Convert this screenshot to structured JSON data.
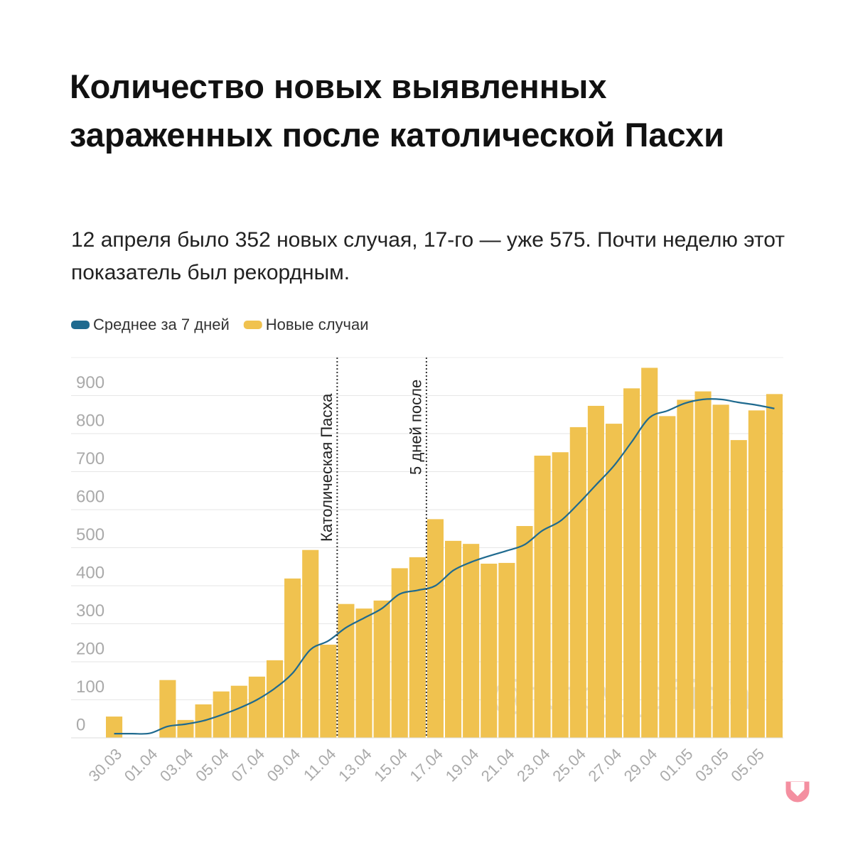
{
  "chart_data": {
    "type": "bar_line",
    "title": "Количество новых выявленных зараженных после католической Пасхи",
    "subtitle": "12 апреля было 352 новых случая, 17-го — уже 575. Почти неделю этот показатель был рекордным.",
    "categories": [
      "30.03",
      null,
      "01.04",
      null,
      "03.04",
      null,
      "05.04",
      null,
      "07.04",
      null,
      "09.04",
      null,
      "11.04",
      null,
      "13.04",
      null,
      "15.04",
      null,
      "17.04",
      null,
      "19.04",
      null,
      "21.04",
      null,
      "23.04",
      null,
      "25.04",
      null,
      "27.04",
      null,
      "29.04",
      null,
      "01.05",
      null,
      "03.05",
      null,
      "05.05",
      null
    ],
    "series": [
      {
        "name": "Среднее за 7 дней",
        "color": "#1f6a8f",
        "kind": "line",
        "values": [
          11,
          11,
          12,
          30,
          36,
          45,
          60,
          78,
          100,
          130,
          170,
          232,
          255,
          290,
          315,
          340,
          378,
          388,
          400,
          440,
          462,
          478,
          492,
          508,
          545,
          570,
          615,
          665,
          715,
          778,
          842,
          860,
          880,
          890,
          890,
          882,
          875,
          866
        ]
      },
      {
        "name": "Новые случаи",
        "color": "#f0c24f",
        "kind": "bar",
        "values": [
          56,
          0,
          0,
          152,
          47,
          88,
          122,
          137,
          161,
          204,
          419,
          494,
          245,
          352,
          340,
          361,
          446,
          475,
          575,
          518,
          510,
          458,
          460,
          557,
          742,
          751,
          817,
          873,
          826,
          919,
          973,
          846,
          889,
          911,
          876,
          783,
          861,
          904
        ]
      }
    ],
    "annotations": [
      "Католическая Пасха",
      "5 дней после"
    ],
    "watermark": "@tutby_official",
    "ylim": [
      0,
      1000
    ],
    "yticks": [
      0,
      100,
      200,
      300,
      400,
      500,
      600,
      700,
      800,
      900
    ],
    "grid": true
  }
}
